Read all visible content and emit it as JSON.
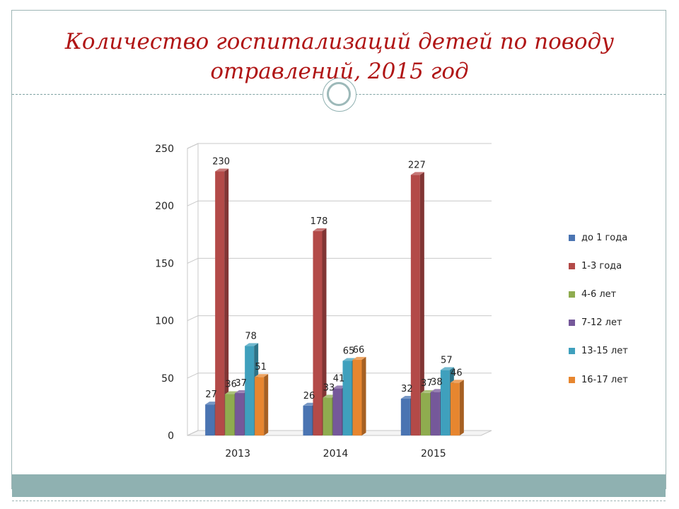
{
  "slide": {
    "title_line1": "Количество госпитализаций детей по поводу",
    "title_line2": "отравлений, 2015 год"
  },
  "chart_data": {
    "type": "bar",
    "title": "Количество госпитализаций детей по поводу отравлений, 2015 год",
    "categories": [
      "2013",
      "2014",
      "2015"
    ],
    "series": [
      {
        "name": "до 1 года",
        "values": [
          27,
          26,
          32
        ],
        "color": "#4a74b2"
      },
      {
        "name": "1-3 года",
        "values": [
          230,
          178,
          227
        ],
        "color": "#b34a48"
      },
      {
        "name": "4-6 лет",
        "values": [
          36,
          33,
          37
        ],
        "color": "#8fac4f"
      },
      {
        "name": "7-12 лет",
        "values": [
          37,
          41,
          38
        ],
        "color": "#75589a"
      },
      {
        "name": "13-15 лет",
        "values": [
          78,
          65,
          57
        ],
        "color": "#3fa0bd"
      },
      {
        "name": "16-17 лет",
        "values": [
          51,
          66,
          46
        ],
        "color": "#e7862f"
      }
    ],
    "ylim": [
      0,
      250
    ],
    "yticks": [
      0,
      50,
      100,
      150,
      200,
      250
    ],
    "grid": true,
    "legend": "right",
    "style": "3d-columns"
  }
}
